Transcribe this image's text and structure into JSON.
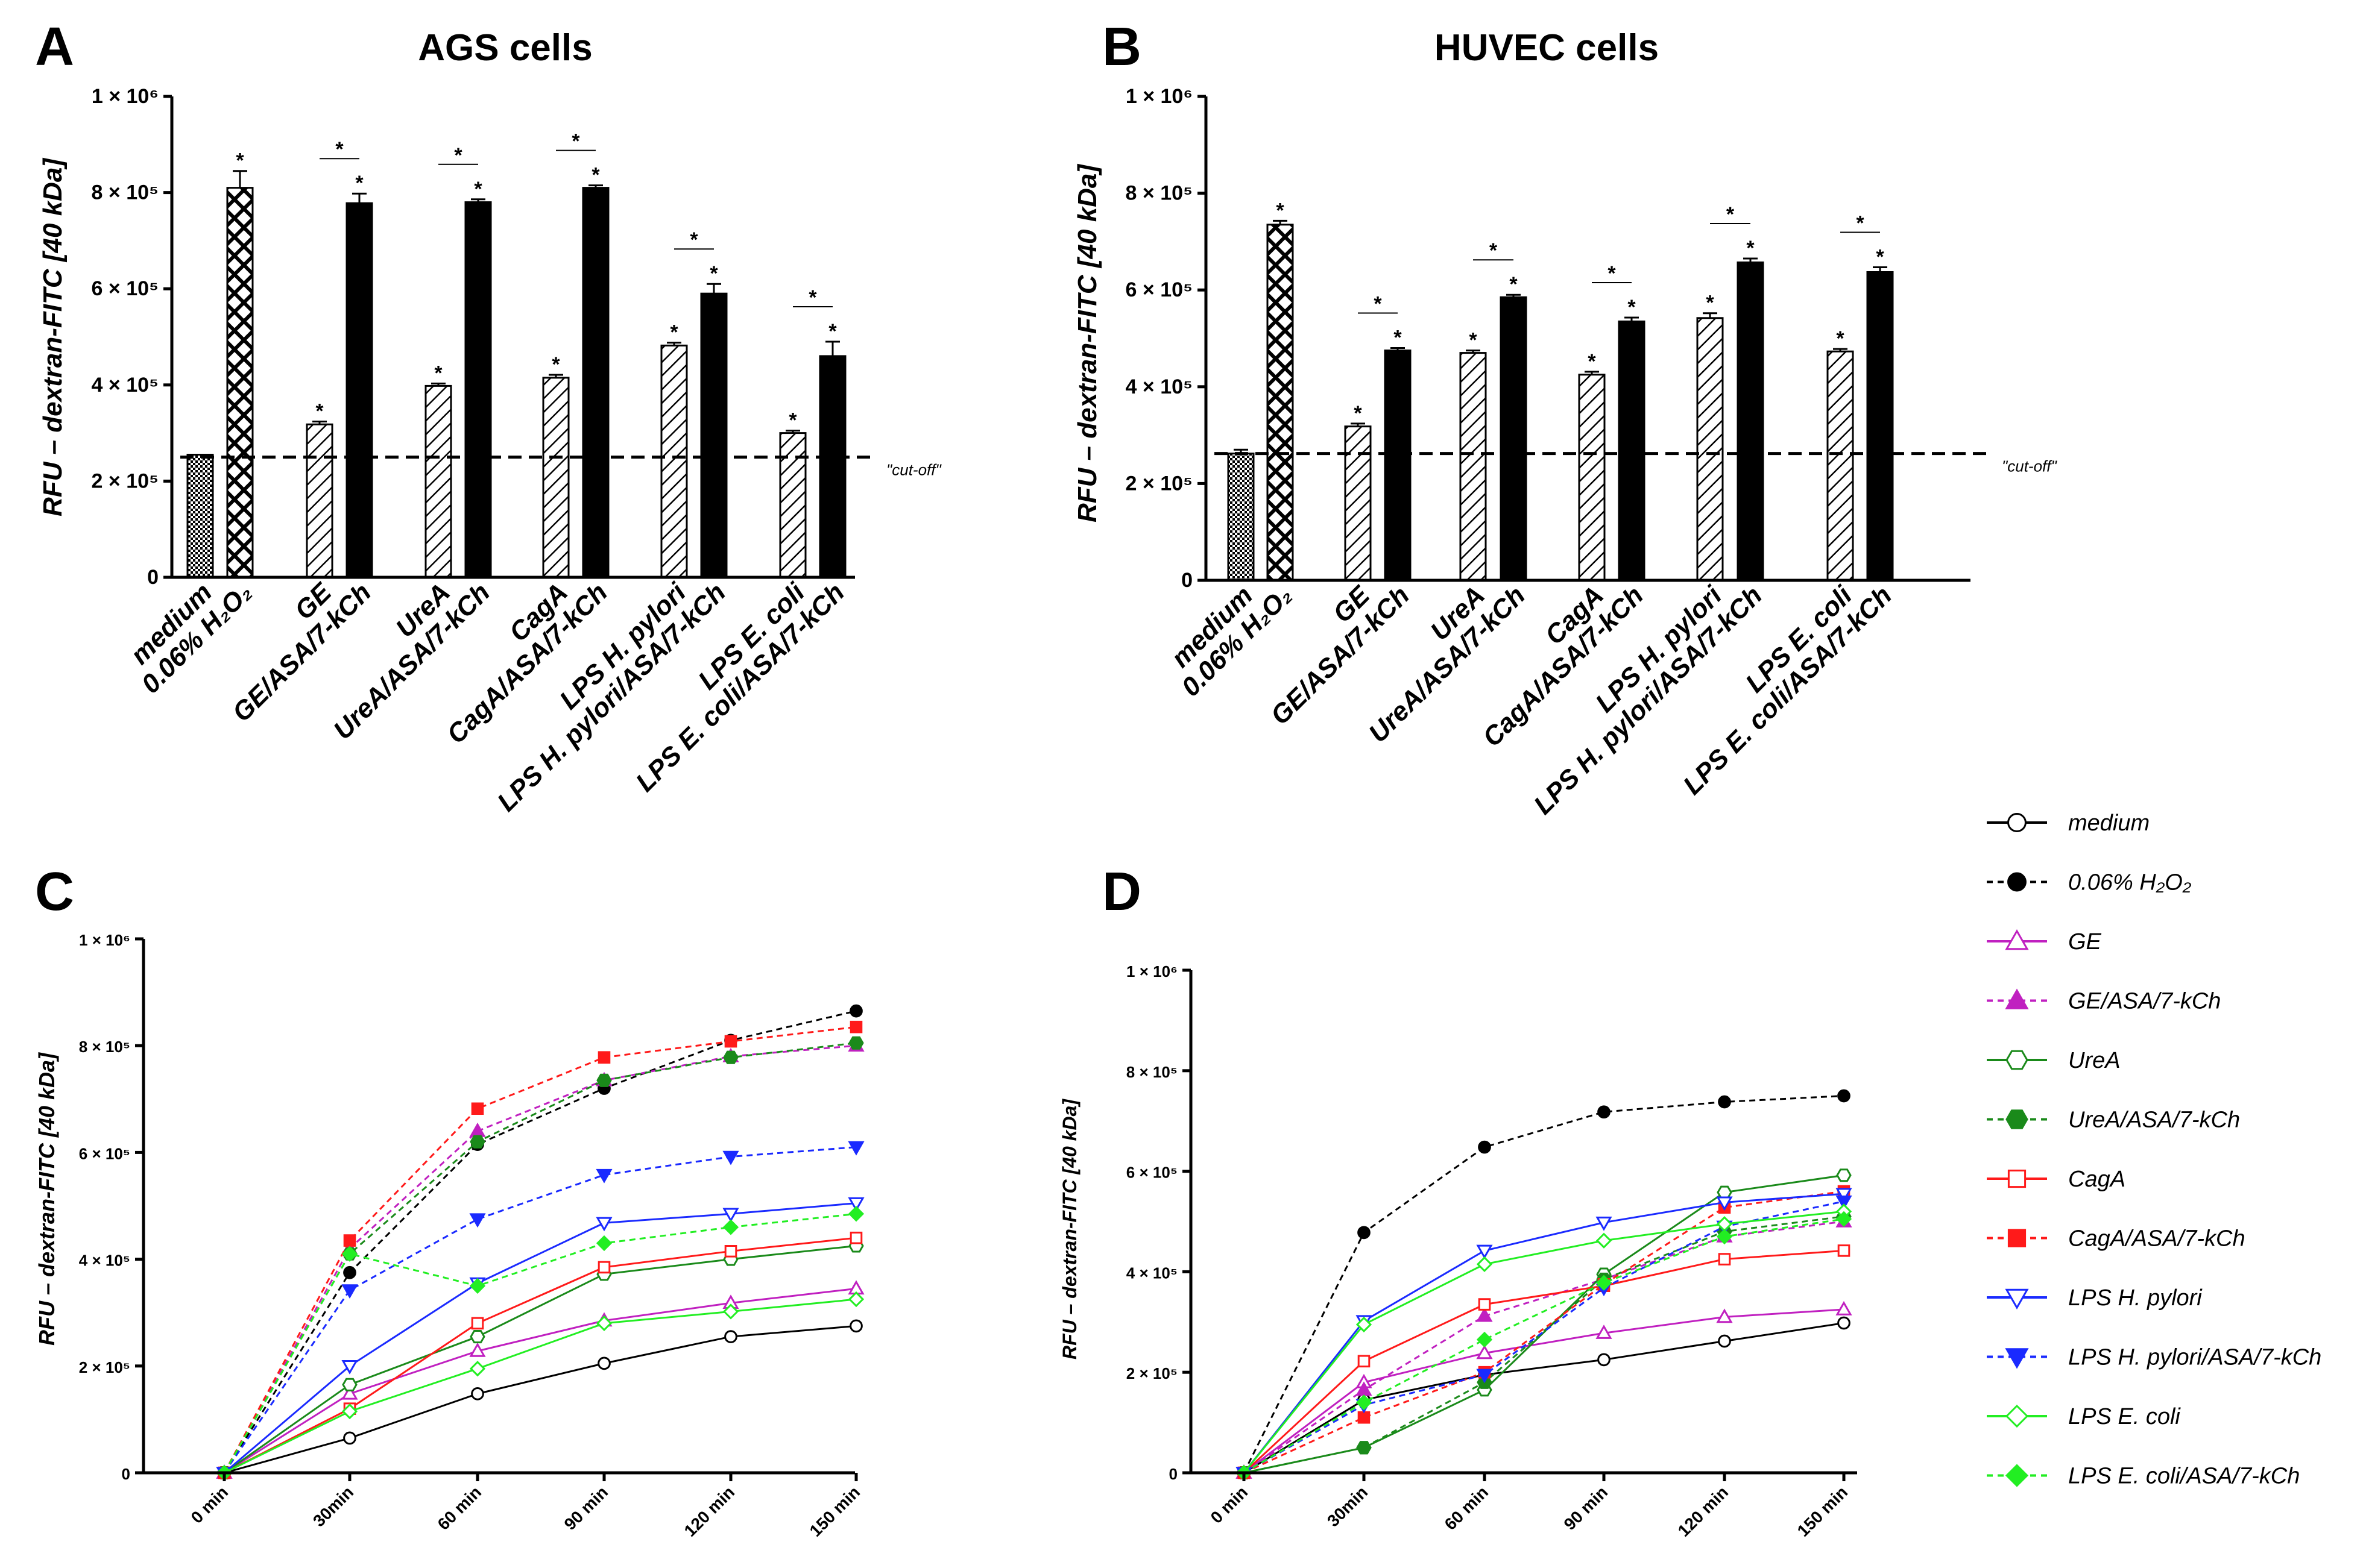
{
  "chart_data": [
    {
      "id": "A",
      "type": "bar",
      "panel_label": "A",
      "title": "AGS cells",
      "ylabel": "RFU – dextran-FITC [40 kDa]",
      "ylim": [
        0,
        1000000
      ],
      "yticks": [
        {
          "value": 0,
          "label": "0"
        },
        {
          "value": 200000,
          "label": "2 × 10⁵"
        },
        {
          "value": 400000,
          "label": "4 × 10⁵"
        },
        {
          "value": 600000,
          "label": "6 × 10⁵"
        },
        {
          "value": 800000,
          "label": "8 × 10⁵"
        },
        {
          "value": 1000000,
          "label": "1 × 10⁶"
        }
      ],
      "cutoff": {
        "value": 250000,
        "label": "\"cut-off\""
      },
      "bars": [
        {
          "label": "medium",
          "value": 255000,
          "error": 0,
          "pattern": "check",
          "star": false
        },
        {
          "label": "0.06% H₂O₂",
          "value": 810000,
          "error": 35000,
          "pattern": "cross",
          "star": true
        },
        {
          "label": "GE",
          "value": 318000,
          "error": 6000,
          "pattern": "hatch",
          "star": true
        },
        {
          "label": "GE/ASA/7-kCh",
          "value": 778000,
          "error": 20000,
          "pattern": "solid",
          "star": true
        },
        {
          "label": "UreA",
          "value": 398000,
          "error": 5000,
          "pattern": "hatch",
          "star": true
        },
        {
          "label": "UreA/ASA/7-kCh",
          "value": 780000,
          "error": 6000,
          "pattern": "solid",
          "star": true
        },
        {
          "label": "CagA",
          "value": 415000,
          "error": 6000,
          "pattern": "hatch",
          "star": true
        },
        {
          "label": "CagA/ASA/7-kCh",
          "value": 810000,
          "error": 5000,
          "pattern": "solid",
          "star": true
        },
        {
          "label": "LPS H. pylori",
          "value": 482000,
          "error": 6000,
          "pattern": "hatch",
          "star": true
        },
        {
          "label": "LPS H. pylori/ASA/7-kCh",
          "value": 590000,
          "error": 20000,
          "pattern": "solid",
          "star": true
        },
        {
          "label": "LPS E. coli",
          "value": 300000,
          "error": 5000,
          "pattern": "hatch",
          "star": true
        },
        {
          "label": "LPS E. coli/ASA/7-kCh",
          "value": 460000,
          "error": 30000,
          "pattern": "solid",
          "star": true
        }
      ],
      "brackets": [
        {
          "from": 2,
          "to": 3,
          "label": "*"
        },
        {
          "from": 4,
          "to": 5,
          "label": "*"
        },
        {
          "from": 6,
          "to": 7,
          "label": "*"
        },
        {
          "from": 8,
          "to": 9,
          "label": "*"
        },
        {
          "from": 10,
          "to": 11,
          "label": "*"
        }
      ]
    },
    {
      "id": "B",
      "type": "bar",
      "panel_label": "B",
      "title": "HUVEC cells",
      "ylabel": "RFU – dextran-FITC [40 kDa]",
      "ylim": [
        0,
        1000000
      ],
      "yticks": [
        {
          "value": 0,
          "label": "0"
        },
        {
          "value": 200000,
          "label": "2 × 10⁵"
        },
        {
          "value": 400000,
          "label": "4 × 10⁵"
        },
        {
          "value": 600000,
          "label": "6 × 10⁵"
        },
        {
          "value": 800000,
          "label": "8 × 10⁵"
        },
        {
          "value": 1000000,
          "label": "1 × 10⁶"
        }
      ],
      "cutoff": {
        "value": 262000,
        "label": "\"cut-off\""
      },
      "bars": [
        {
          "label": "medium",
          "value": 262000,
          "error": 8000,
          "pattern": "check",
          "star": false
        },
        {
          "label": "0.06% H₂O₂",
          "value": 735000,
          "error": 8000,
          "pattern": "cross",
          "star": true
        },
        {
          "label": "GE",
          "value": 318000,
          "error": 6000,
          "pattern": "hatch",
          "star": true
        },
        {
          "label": "GE/ASA/7-kCh",
          "value": 475000,
          "error": 5000,
          "pattern": "solid",
          "star": true
        },
        {
          "label": "UreA",
          "value": 470000,
          "error": 5000,
          "pattern": "hatch",
          "star": true
        },
        {
          "label": "UreA/ASA/7-kCh",
          "value": 585000,
          "error": 5000,
          "pattern": "solid",
          "star": true
        },
        {
          "label": "CagA",
          "value": 425000,
          "error": 6000,
          "pattern": "hatch",
          "star": true
        },
        {
          "label": "CagA/ASA/7-kCh",
          "value": 535000,
          "error": 8000,
          "pattern": "solid",
          "star": true
        },
        {
          "label": "LPS H. pylori",
          "value": 542000,
          "error": 10000,
          "pattern": "hatch",
          "star": true
        },
        {
          "label": "LPS H. pylori/ASA/7-kCh",
          "value": 657000,
          "error": 8000,
          "pattern": "solid",
          "star": true
        },
        {
          "label": "LPS E. coli",
          "value": 473000,
          "error": 5000,
          "pattern": "hatch",
          "star": true
        },
        {
          "label": "LPS E. coli/ASA/7-kCh",
          "value": 637000,
          "error": 10000,
          "pattern": "solid",
          "star": true
        }
      ],
      "brackets": [
        {
          "from": 2,
          "to": 3,
          "label": "*"
        },
        {
          "from": 4,
          "to": 5,
          "label": "*"
        },
        {
          "from": 6,
          "to": 7,
          "label": "*"
        },
        {
          "from": 8,
          "to": 9,
          "label": "*"
        },
        {
          "from": 10,
          "to": 11,
          "label": "*"
        }
      ]
    },
    {
      "id": "C",
      "type": "line",
      "panel_label": "C",
      "title": "",
      "ylabel": "RFU – dextran-FITC [40 kDa]",
      "ylim": [
        0,
        1000000
      ],
      "yticks": [
        {
          "value": 0,
          "label": "0"
        },
        {
          "value": 200000,
          "label": "2 × 10⁵"
        },
        {
          "value": 400000,
          "label": "4 × 10⁵"
        },
        {
          "value": 600000,
          "label": "6 × 10⁵"
        },
        {
          "value": 800000,
          "label": "8 × 10⁵"
        },
        {
          "value": 1000000,
          "label": "1 × 10⁶"
        }
      ],
      "categories": [
        "0 min",
        "30min",
        "60 min",
        "90 min",
        "120 min",
        "150 min"
      ],
      "series": [
        {
          "name": "medium",
          "values": [
            0,
            65000,
            148000,
            205000,
            255000,
            275000
          ]
        },
        {
          "name": "0.06% H₂O₂",
          "values": [
            0,
            375000,
            615000,
            720000,
            810000,
            865000
          ]
        },
        {
          "name": "GE",
          "values": [
            0,
            148000,
            228000,
            285000,
            318000,
            345000
          ]
        },
        {
          "name": "GE/ASA/7-kCh",
          "values": [
            0,
            420000,
            640000,
            735000,
            780000,
            800000
          ]
        },
        {
          "name": "UreA",
          "values": [
            0,
            165000,
            255000,
            372000,
            400000,
            425000
          ]
        },
        {
          "name": "UreA/ASA/7-kCh",
          "values": [
            0,
            410000,
            620000,
            735000,
            778000,
            805000
          ]
        },
        {
          "name": "CagA",
          "values": [
            0,
            120000,
            280000,
            385000,
            415000,
            440000
          ]
        },
        {
          "name": "CagA/ASA/7-kCh",
          "values": [
            0,
            435000,
            682000,
            778000,
            808000,
            835000
          ]
        },
        {
          "name": "LPS H. pylori",
          "values": [
            0,
            200000,
            355000,
            468000,
            485000,
            505000
          ]
        },
        {
          "name": "LPS H. pylori/ASA/7-kCh",
          "values": [
            0,
            342000,
            475000,
            558000,
            592000,
            610000
          ]
        },
        {
          "name": "LPS E. coli",
          "values": [
            0,
            115000,
            195000,
            280000,
            302000,
            325000
          ]
        },
        {
          "name": "LPS E. coli/ASA/7-kCh",
          "values": [
            0,
            410000,
            350000,
            430000,
            460000,
            485000
          ]
        }
      ]
    },
    {
      "id": "D",
      "type": "line",
      "panel_label": "D",
      "title": "",
      "ylabel": "RFU – dextran-FITC [40 kDa]",
      "ylim": [
        0,
        1000000
      ],
      "yticks": [
        {
          "value": 0,
          "label": "0"
        },
        {
          "value": 200000,
          "label": "2 × 10⁵"
        },
        {
          "value": 400000,
          "label": "4 × 10⁵"
        },
        {
          "value": 600000,
          "label": "6 × 10⁵"
        },
        {
          "value": 800000,
          "label": "8 × 10⁵"
        },
        {
          "value": 1000000,
          "label": "1 × 10⁶"
        }
      ],
      "categories": [
        "0 min",
        "30min",
        "60 min",
        "90 min",
        "120 min",
        "150 min"
      ],
      "series": [
        {
          "name": "medium",
          "values": [
            0,
            145000,
            195000,
            225000,
            262000,
            298000
          ]
        },
        {
          "name": "0.06% H₂O₂",
          "values": [
            0,
            478000,
            648000,
            718000,
            738000,
            750000
          ]
        },
        {
          "name": "GE",
          "values": [
            0,
            180000,
            238000,
            278000,
            310000,
            325000
          ]
        },
        {
          "name": "GE/ASA/7-kCh",
          "values": [
            0,
            165000,
            312000,
            385000,
            470000,
            500000
          ]
        },
        {
          "name": "UreA",
          "values": [
            0,
            50000,
            165000,
            395000,
            558000,
            592000
          ]
        },
        {
          "name": "UreA/ASA/7-kCh",
          "values": [
            0,
            50000,
            180000,
            385000,
            480000,
            510000
          ]
        },
        {
          "name": "CagA",
          "values": [
            0,
            222000,
            335000,
            372000,
            425000,
            442000
          ]
        },
        {
          "name": "CagA/ASA/7-kCh",
          "values": [
            0,
            110000,
            200000,
            375000,
            528000,
            560000
          ]
        },
        {
          "name": "LPS H. pylori",
          "values": [
            0,
            302000,
            442000,
            498000,
            538000,
            555000
          ]
        },
        {
          "name": "LPS H. pylori/ASA/7-kCh",
          "values": [
            0,
            135000,
            195000,
            368000,
            490000,
            540000
          ]
        },
        {
          "name": "LPS E. coli",
          "values": [
            0,
            295000,
            415000,
            462000,
            495000,
            520000
          ]
        },
        {
          "name": "LPS E. coli/ASA/7-kCh",
          "values": [
            0,
            140000,
            265000,
            378000,
            470000,
            505000
          ]
        }
      ]
    }
  ],
  "legend": [
    {
      "name": "medium",
      "color": "#000000",
      "dashed": false,
      "marker": "circle",
      "filled": false
    },
    {
      "name": "0.06% H₂O₂",
      "color": "#000000",
      "dashed": true,
      "marker": "circle",
      "filled": true
    },
    {
      "name": "GE",
      "color": "#c020c0",
      "dashed": false,
      "marker": "triangle-up",
      "filled": false
    },
    {
      "name": "GE/ASA/7-kCh",
      "color": "#c020c0",
      "dashed": true,
      "marker": "triangle-up",
      "filled": true
    },
    {
      "name": "UreA",
      "color": "#1a8a1a",
      "dashed": false,
      "marker": "hexagon",
      "filled": false
    },
    {
      "name": "UreA/ASA/7-kCh",
      "color": "#1a8a1a",
      "dashed": true,
      "marker": "hexagon",
      "filled": true
    },
    {
      "name": "CagA",
      "color": "#ff1a1a",
      "dashed": false,
      "marker": "square",
      "filled": false
    },
    {
      "name": "CagA/ASA/7-kCh",
      "color": "#ff1a1a",
      "dashed": true,
      "marker": "square",
      "filled": true
    },
    {
      "name": "LPS H. pylori",
      "color": "#1a2aff",
      "dashed": false,
      "marker": "triangle-down",
      "filled": false
    },
    {
      "name": "LPS H. pylori/ASA/7-kCh",
      "color": "#1a2aff",
      "dashed": true,
      "marker": "triangle-down",
      "filled": true
    },
    {
      "name": "LPS E. coli",
      "color": "#22ee22",
      "dashed": false,
      "marker": "diamond",
      "filled": false
    },
    {
      "name": "LPS E. coli/ASA/7-kCh",
      "color": "#22ee22",
      "dashed": true,
      "marker": "diamond",
      "filled": true
    }
  ]
}
